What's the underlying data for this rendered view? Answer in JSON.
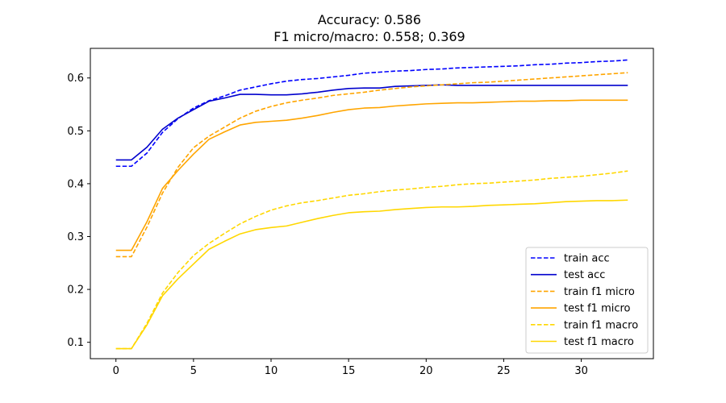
{
  "chart_data": {
    "type": "line",
    "title": "Accuracy: 0.586",
    "subtitle": "F1 micro/macro: 0.558; 0.369",
    "xlim": [
      -1.65,
      34.65
    ],
    "ylim": [
      0.069,
      0.656
    ],
    "x_ticks": [
      0,
      5,
      10,
      15,
      20,
      25,
      30
    ],
    "y_ticks": [
      0.1,
      0.2,
      0.3,
      0.4,
      0.5,
      0.6
    ],
    "x_tick_labels": [
      "0",
      "5",
      "10",
      "15",
      "20",
      "25",
      "30"
    ],
    "y_tick_labels": [
      "0.1",
      "0.2",
      "0.3",
      "0.4",
      "0.5",
      "0.6"
    ],
    "grid": false,
    "legend_position": "lower-right",
    "x": [
      0,
      1,
      2,
      3,
      4,
      5,
      6,
      7,
      8,
      9,
      10,
      11,
      12,
      13,
      14,
      15,
      16,
      17,
      18,
      19,
      20,
      21,
      22,
      23,
      24,
      25,
      26,
      27,
      28,
      29,
      30,
      31,
      32,
      33
    ],
    "series": [
      {
        "name": "train acc",
        "color": "#0000ff",
        "dash": "dashed",
        "values": [
          0.433,
          0.433,
          0.458,
          0.497,
          0.523,
          0.543,
          0.557,
          0.566,
          0.577,
          0.583,
          0.589,
          0.594,
          0.597,
          0.599,
          0.602,
          0.605,
          0.609,
          0.611,
          0.613,
          0.614,
          0.616,
          0.617,
          0.619,
          0.62,
          0.621,
          0.622,
          0.623,
          0.625,
          0.626,
          0.628,
          0.629,
          0.631,
          0.632,
          0.634
        ]
      },
      {
        "name": "test acc",
        "color": "#0000cd",
        "dash": "solid",
        "values": [
          0.445,
          0.445,
          0.469,
          0.503,
          0.524,
          0.54,
          0.556,
          0.562,
          0.569,
          0.569,
          0.568,
          0.568,
          0.57,
          0.573,
          0.577,
          0.58,
          0.581,
          0.581,
          0.584,
          0.585,
          0.586,
          0.587,
          0.586,
          0.586,
          0.586,
          0.586,
          0.586,
          0.586,
          0.586,
          0.586,
          0.586,
          0.586,
          0.586,
          0.586
        ]
      },
      {
        "name": "train f1 micro",
        "color": "#ffa500",
        "dash": "dashed",
        "values": [
          0.262,
          0.262,
          0.318,
          0.382,
          0.431,
          0.468,
          0.49,
          0.507,
          0.524,
          0.537,
          0.546,
          0.553,
          0.558,
          0.562,
          0.567,
          0.57,
          0.573,
          0.577,
          0.58,
          0.583,
          0.585,
          0.587,
          0.589,
          0.591,
          0.592,
          0.594,
          0.596,
          0.598,
          0.6,
          0.602,
          0.604,
          0.606,
          0.608,
          0.61
        ]
      },
      {
        "name": "test f1 micro",
        "color": "#ffa500",
        "dash": "solid",
        "values": [
          0.274,
          0.274,
          0.328,
          0.391,
          0.425,
          0.456,
          0.484,
          0.498,
          0.511,
          0.516,
          0.518,
          0.52,
          0.524,
          0.529,
          0.535,
          0.54,
          0.543,
          0.544,
          0.547,
          0.549,
          0.551,
          0.552,
          0.553,
          0.553,
          0.554,
          0.555,
          0.556,
          0.556,
          0.557,
          0.557,
          0.558,
          0.558,
          0.558,
          0.558
        ]
      },
      {
        "name": "train f1 macro",
        "color": "#ffd700",
        "dash": "dashed",
        "values": [
          0.088,
          0.088,
          0.136,
          0.193,
          0.232,
          0.264,
          0.287,
          0.306,
          0.324,
          0.338,
          0.35,
          0.358,
          0.364,
          0.368,
          0.373,
          0.378,
          0.381,
          0.385,
          0.388,
          0.39,
          0.393,
          0.395,
          0.398,
          0.4,
          0.401,
          0.403,
          0.405,
          0.407,
          0.41,
          0.412,
          0.414,
          0.417,
          0.42,
          0.424
        ]
      },
      {
        "name": "test f1 macro",
        "color": "#ffd700",
        "dash": "solid",
        "values": [
          0.088,
          0.088,
          0.133,
          0.188,
          0.22,
          0.248,
          0.276,
          0.291,
          0.305,
          0.313,
          0.317,
          0.32,
          0.327,
          0.334,
          0.34,
          0.345,
          0.347,
          0.348,
          0.351,
          0.353,
          0.355,
          0.356,
          0.356,
          0.357,
          0.359,
          0.36,
          0.361,
          0.362,
          0.364,
          0.366,
          0.367,
          0.368,
          0.368,
          0.369
        ]
      }
    ]
  }
}
